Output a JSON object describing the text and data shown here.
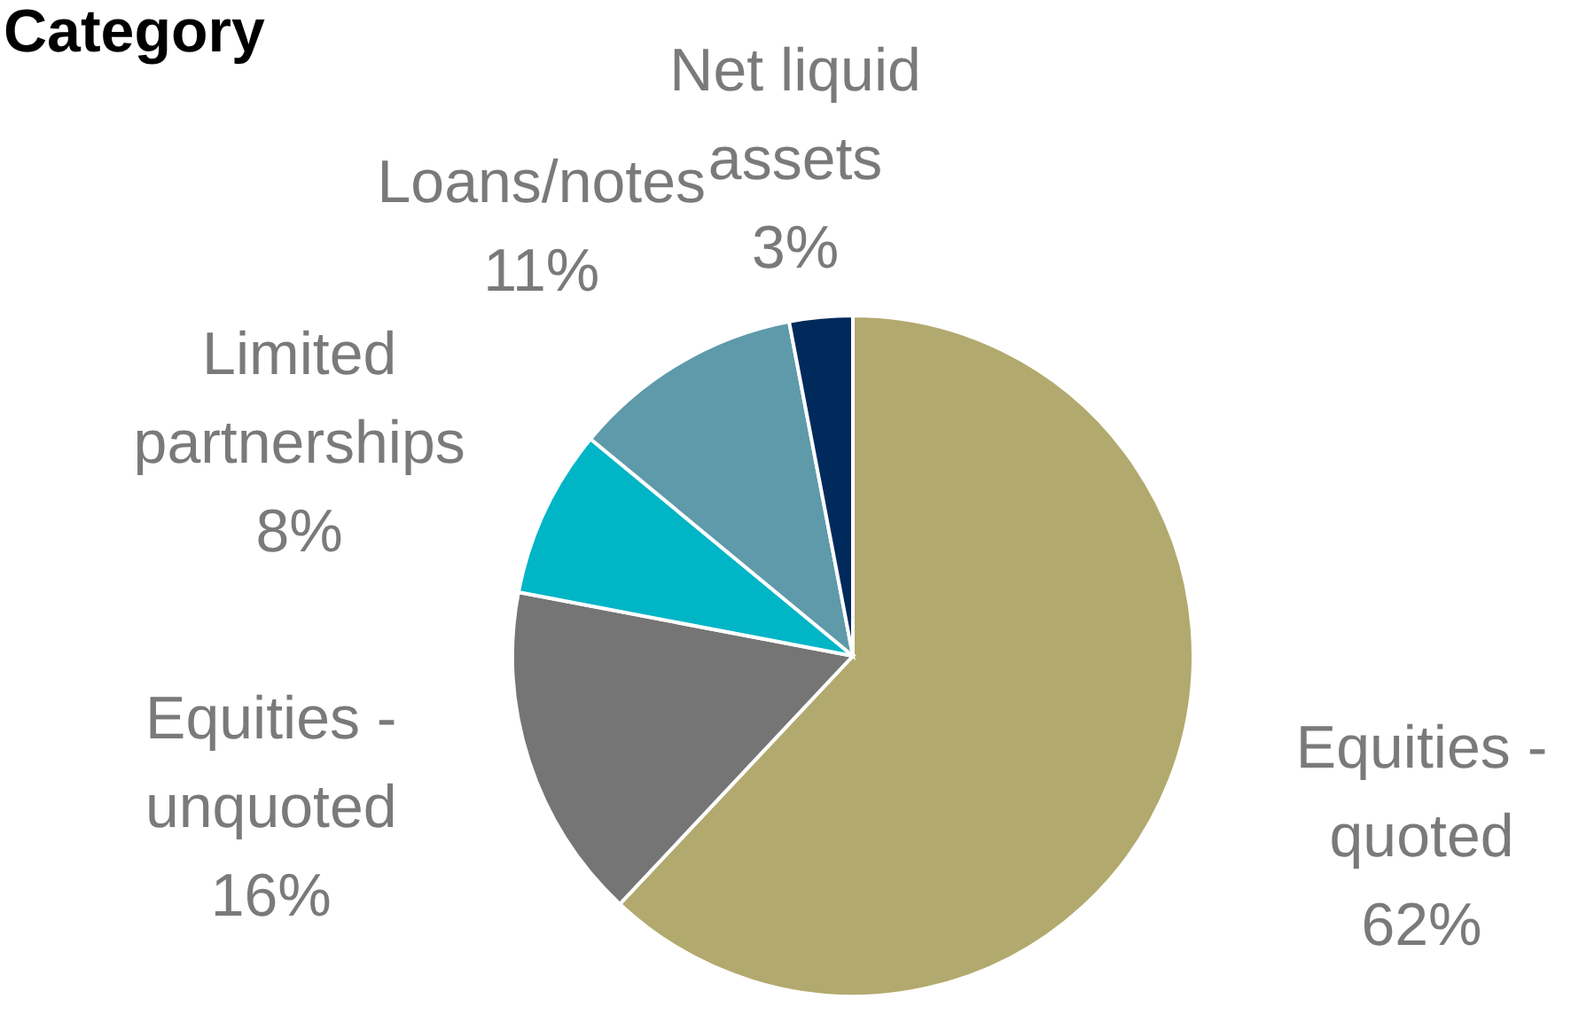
{
  "chart_data": {
    "type": "pie",
    "title": "Category",
    "categories": [
      "Equities - quoted",
      "Equities - unquoted",
      "Limited partnerships",
      "Loans/notes",
      "Net liquid assets"
    ],
    "values": [
      62,
      16,
      8,
      11,
      3
    ],
    "value_labels": [
      "62%",
      "16%",
      "8%",
      "11%",
      "3%"
    ],
    "colors": [
      "#b2a96e",
      "#757575",
      "#00b5c6",
      "#5e9aaa",
      "#002a5c"
    ]
  }
}
